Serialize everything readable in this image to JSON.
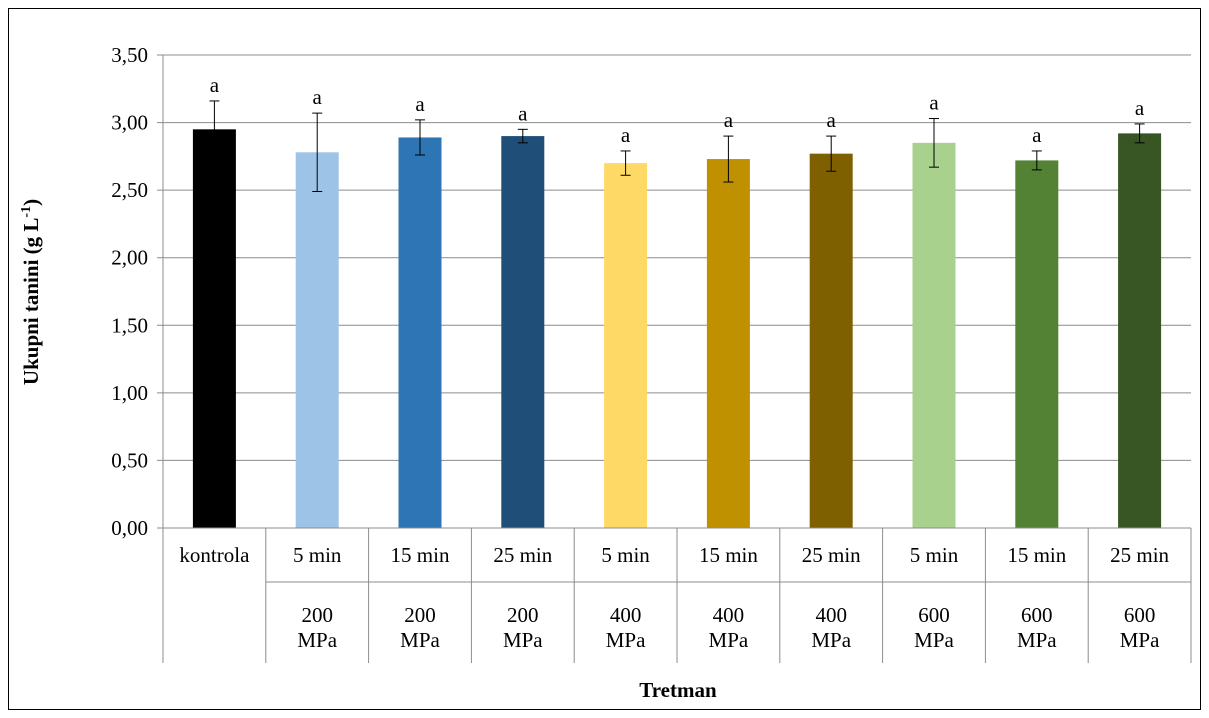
{
  "chart_data": {
    "type": "bar",
    "title": "",
    "xlabel": "Tretman",
    "ylabel": "Ukupni tanini (g L",
    "ylabel_sup": "-1",
    "ylabel_end": ")",
    "ylim": [
      0,
      3.5
    ],
    "yticks": [
      "0,00",
      "0,50",
      "1,00",
      "1,50",
      "2,00",
      "2,50",
      "3,00",
      "3,50"
    ],
    "grid": true,
    "legend": "none",
    "categories": [
      {
        "time": "kontrola",
        "pressure": ""
      },
      {
        "time": "5 min",
        "pressure": "200 MPa"
      },
      {
        "time": "15 min",
        "pressure": "200 MPa"
      },
      {
        "time": "25 min",
        "pressure": "200 MPa"
      },
      {
        "time": "5 min",
        "pressure": "400 MPa"
      },
      {
        "time": "15 min",
        "pressure": "400 MPa"
      },
      {
        "time": "25 min",
        "pressure": "400 MPa"
      },
      {
        "time": "5 min",
        "pressure": "600 MPa"
      },
      {
        "time": "15 min",
        "pressure": "600 MPa"
      },
      {
        "time": "25 min",
        "pressure": "600 MPa"
      }
    ],
    "values": [
      2.95,
      2.78,
      2.89,
      2.9,
      2.7,
      2.73,
      2.77,
      2.85,
      2.72,
      2.92
    ],
    "errors": [
      0.21,
      0.29,
      0.13,
      0.05,
      0.09,
      0.17,
      0.13,
      0.18,
      0.07,
      0.07
    ],
    "significance": [
      "a",
      "a",
      "a",
      "a",
      "a",
      "a",
      "a",
      "a",
      "a",
      "a"
    ],
    "colors": [
      "#000000",
      "#9dc3e6",
      "#2e75b6",
      "#1f4e79",
      "#ffd966",
      "#bf9000",
      "#7f6000",
      "#a9d18e",
      "#548235",
      "#375623"
    ]
  }
}
